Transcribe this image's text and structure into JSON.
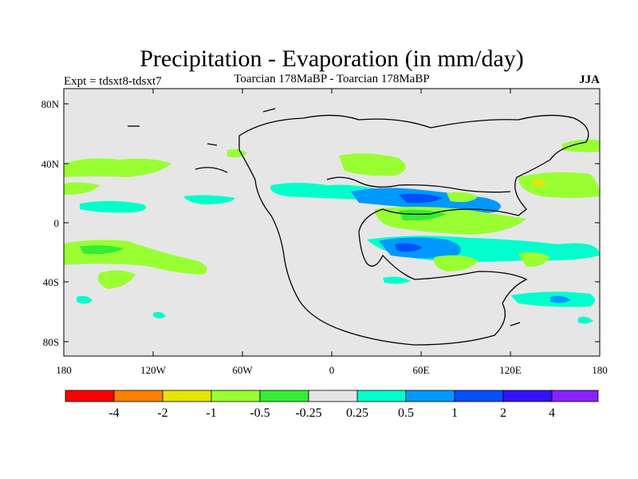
{
  "header": {
    "title": "Precipitation - Evaporation (in mm/day)",
    "left_label": "Expt = tdsxt8-tdsxt7",
    "center_label": "Toarcian 178MaBP - Toarcian 178MaBP",
    "right_label": "JJA"
  },
  "map": {
    "y_ticks": [
      "80N",
      "40N",
      "0",
      "40S",
      "80S"
    ],
    "x_ticks": [
      "180",
      "120W",
      "60W",
      "0",
      "60E",
      "120E",
      "180"
    ],
    "background_color": "#e6e6e6"
  },
  "colorbar": {
    "colors": [
      "#ff0000",
      "#ff7f00",
      "#e6e600",
      "#99ff33",
      "#33ee33",
      "#e6e6e6",
      "#00ffcc",
      "#0099ff",
      "#0050ff",
      "#3311ff",
      "#8822ff"
    ],
    "labels": [
      "-4",
      "-2",
      "-1",
      "-0.5",
      "-0.25",
      "0.25",
      "0.5",
      "1",
      "2",
      "4"
    ]
  }
}
